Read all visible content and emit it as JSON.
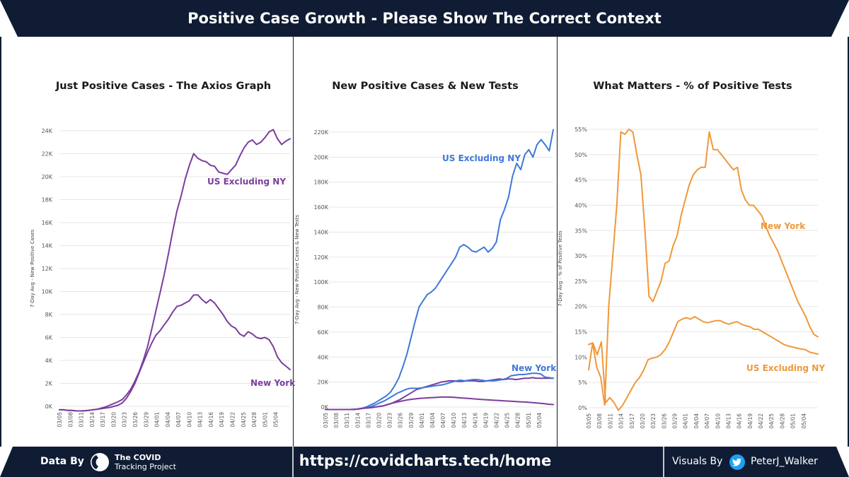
{
  "header": {
    "title": "Positive Case Growth - Please Show The Correct Context"
  },
  "colors": {
    "navy": "#0f1c33",
    "purple": "#7a3e9d",
    "blue": "#3f78d8",
    "orange": "#f0983a",
    "grid": "#e6e6e6",
    "twitter": "#1da1f2"
  },
  "footer": {
    "data_by_label": "Data By",
    "source_line1": "The COVID",
    "source_line2": "Tracking Project",
    "url": "https://covidcharts.tech/home",
    "visuals_by_label": "Visuals By",
    "author": "PeterJ_Walker",
    "twitter_icon": "twitter-bird-icon",
    "source_icon": "covid-tracking-project-logo-icon"
  },
  "chart_data": [
    {
      "type": "line",
      "title": "Just Positive Cases - The Axios Graph",
      "ylabel": "7-Day Avg - New Positive Cases",
      "ylim": [
        0,
        24000
      ],
      "yticks": [
        0,
        2000,
        4000,
        6000,
        8000,
        10000,
        12000,
        14000,
        16000,
        18000,
        20000,
        22000,
        24000
      ],
      "ytick_labels": [
        "0K",
        "2K",
        "4K",
        "6K",
        "8K",
        "10K",
        "12K",
        "14K",
        "16K",
        "18K",
        "20K",
        "22K",
        "24K"
      ],
      "x_tick_labels": [
        "03/05",
        "03/08",
        "03/11",
        "03/14",
        "03/17",
        "03/20",
        "03/23",
        "03/26",
        "03/29",
        "04/01",
        "04/04",
        "04/07",
        "04/10",
        "04/13",
        "04/16",
        "04/19",
        "04/22",
        "04/25",
        "04/28",
        "05/01",
        "05/04"
      ],
      "x_range_days": [
        0,
        64
      ],
      "grid": true,
      "series": [
        {
          "name": "US Excluding NY",
          "color": "#7a3e9d",
          "values": [
            -300,
            -300,
            -350,
            -350,
            -400,
            -400,
            -380,
            -350,
            -300,
            -250,
            -150,
            -50,
            100,
            250,
            400,
            600,
            1000,
            1500,
            2200,
            3000,
            4000,
            5200,
            6700,
            8300,
            9900,
            11500,
            13300,
            15200,
            17000,
            18300,
            19800,
            21000,
            22000,
            21600,
            21400,
            21300,
            21000,
            20900,
            20400,
            20300,
            20200,
            20600,
            21000,
            21800,
            22500,
            23000,
            23200,
            22800,
            23000,
            23400,
            23900,
            24100,
            23300,
            22800,
            23100,
            23300
          ]
        },
        {
          "name": "New York",
          "color": "#7a3e9d",
          "values": [
            -300,
            -300,
            -350,
            -350,
            -400,
            -400,
            -380,
            -350,
            -300,
            -250,
            -200,
            -150,
            -100,
            0,
            100,
            300,
            700,
            1300,
            2000,
            2900,
            3800,
            4700,
            5500,
            6200,
            6600,
            7100,
            7600,
            8200,
            8700,
            8800,
            9000,
            9200,
            9700,
            9700,
            9300,
            9000,
            9300,
            9000,
            8500,
            8000,
            7400,
            7000,
            6800,
            6300,
            6100,
            6500,
            6300,
            6000,
            5900,
            6000,
            5800,
            5200,
            4300,
            3800,
            3500,
            3200
          ]
        }
      ]
    },
    {
      "type": "line",
      "title": "New Positive Cases & New Tests",
      "ylabel": "7-Day Avg - New Positive Cases & New Tests",
      "ylim": [
        0,
        220000
      ],
      "yticks": [
        0,
        20000,
        40000,
        60000,
        80000,
        100000,
        120000,
        140000,
        160000,
        180000,
        200000,
        220000
      ],
      "ytick_labels": [
        "0K",
        "20K",
        "40K",
        "60K",
        "80K",
        "100K",
        "120K",
        "140K",
        "160K",
        "180K",
        "200K",
        "220K"
      ],
      "x_tick_labels": [
        "03/05",
        "03/08",
        "03/11",
        "03/14",
        "03/17",
        "03/20",
        "03/23",
        "03/26",
        "03/29",
        "04/01",
        "04/04",
        "04/07",
        "04/10",
        "04/13",
        "04/16",
        "04/19",
        "04/22",
        "04/25",
        "04/28",
        "05/01",
        "05/04"
      ],
      "x_range_days": [
        0,
        64
      ],
      "grid": true,
      "series": [
        {
          "name": "US Excluding NY",
          "color": "#3f78d8",
          "label_text": "US Excluding NY",
          "values": [
            -2000,
            -2000,
            -2000,
            -2000,
            -2000,
            -2000,
            -2000,
            -1800,
            -1500,
            -1000,
            0,
            1500,
            3000,
            5000,
            7000,
            9000,
            12000,
            17000,
            23000,
            32000,
            42000,
            55000,
            68000,
            80000,
            85000,
            90000,
            92000,
            95000,
            100000,
            105000,
            110000,
            115000,
            120000,
            128000,
            130000,
            128000,
            125000,
            124000,
            126000,
            128000,
            124000,
            127000,
            132000,
            150000,
            158000,
            168000,
            185000,
            195000,
            190000,
            202000,
            206000,
            200000,
            210000,
            214000,
            210000,
            205000,
            222000
          ]
        },
        {
          "name": "US Excl NY positives",
          "color": "#7a3e9d",
          "values": [
            -2000,
            -2000,
            -2000,
            -2000,
            -2000,
            -2000,
            -2000,
            -1800,
            -1500,
            -1000,
            -800,
            -500,
            0,
            500,
            1000,
            2000,
            3000,
            4500,
            6000,
            8000,
            10000,
            12000,
            14000,
            15000,
            16000,
            17000,
            18000,
            19000,
            20000,
            20500,
            21000,
            21000,
            20500,
            20500,
            21000,
            21000,
            21000,
            20500,
            20500,
            21000,
            21500,
            22000,
            22500,
            22000,
            22500,
            22500,
            22000,
            22500,
            23000,
            23000,
            23500,
            23000,
            23000,
            23000,
            23000,
            23000
          ]
        },
        {
          "name": "New York",
          "color": "#3f78d8",
          "label_text": "New York",
          "values": [
            -2000,
            -2000,
            -2000,
            -2000,
            -2000,
            -2000,
            -2000,
            -1800,
            -1500,
            -1000,
            -500,
            500,
            2000,
            3500,
            5000,
            7000,
            9000,
            11000,
            12500,
            14000,
            15000,
            15000,
            15000,
            15500,
            16000,
            16500,
            17000,
            17500,
            18000,
            19000,
            20000,
            21000,
            21500,
            21000,
            21500,
            22000,
            22000,
            21500,
            21000,
            21000,
            21000,
            21500,
            22000,
            23000,
            25000,
            25500,
            26000,
            26000,
            26500,
            27000,
            27000,
            26500,
            24000,
            23500,
            23000
          ]
        },
        {
          "name": "New York positives",
          "color": "#7a3e9d",
          "values": [
            -2000,
            -2000,
            -2000,
            -2000,
            -2000,
            -2000,
            -2000,
            -1800,
            -1500,
            -1000,
            -800,
            -500,
            0,
            500,
            1000,
            2000,
            3000,
            3800,
            4500,
            5200,
            5800,
            6300,
            6700,
            7000,
            7200,
            7400,
            7600,
            7800,
            8000,
            8000,
            8000,
            7800,
            7500,
            7200,
            7000,
            6800,
            6500,
            6200,
            6000,
            5800,
            5600,
            5400,
            5200,
            5000,
            4800,
            4600,
            4400,
            4200,
            4000,
            3800,
            3500,
            3200,
            3000,
            2600,
            2200,
            2000
          ]
        }
      ]
    },
    {
      "type": "line",
      "title": "What Matters - % of Positive Tests",
      "ylabel": "7-Day Avg - % of Positive Tests",
      "ylim": [
        0,
        55
      ],
      "yticks": [
        0,
        5,
        10,
        15,
        20,
        25,
        30,
        35,
        40,
        45,
        50,
        55
      ],
      "ytick_labels": [
        "0%",
        "5%",
        "10%",
        "15%",
        "20%",
        "25%",
        "30%",
        "35%",
        "40%",
        "45%",
        "50%",
        "55%"
      ],
      "x_tick_labels": [
        "03/05",
        "03/08",
        "03/11",
        "03/14",
        "03/17",
        "03/20",
        "03/23",
        "03/26",
        "03/29",
        "04/01",
        "04/04",
        "04/07",
        "04/10",
        "04/13",
        "04/16",
        "04/19",
        "04/22",
        "04/25",
        "04/28",
        "05/01",
        "05/04"
      ],
      "x_range_days": [
        0,
        64
      ],
      "grid": true,
      "series": [
        {
          "name": "New York",
          "color": "#f0983a",
          "label_text": "New York",
          "values": [
            7.5,
            12.8,
            8,
            6,
            0.5,
            20,
            30,
            40,
            54.5,
            54,
            55,
            54.5,
            50,
            46,
            35,
            22,
            21,
            23,
            25,
            28.5,
            29,
            32,
            34,
            38,
            41,
            44,
            46,
            47,
            47.5,
            47.5,
            54.5,
            51,
            51,
            50,
            49,
            48,
            47,
            47.5,
            43,
            41,
            40,
            40,
            39,
            38,
            36,
            34,
            32.5,
            31,
            29,
            27,
            25,
            23,
            21,
            19.5,
            18,
            16,
            14.5,
            14
          ]
        },
        {
          "name": "US Excluding NY",
          "color": "#f0983a",
          "label_text": "US Excluding NY",
          "values": [
            12.5,
            12.8,
            10.5,
            13,
            1,
            2,
            1,
            -0.5,
            0.5,
            2,
            3.5,
            5,
            6,
            7.5,
            9.5,
            9.8,
            10,
            10.5,
            11.5,
            13,
            15,
            17,
            17.5,
            17.8,
            17.5,
            18,
            17.5,
            17,
            16.8,
            17,
            17.2,
            17.2,
            16.8,
            16.5,
            16.8,
            17,
            16.5,
            16.2,
            16,
            15.5,
            15.5,
            15,
            14.5,
            14,
            13.5,
            13,
            12.5,
            12.2,
            12,
            11.8,
            11.6,
            11.5,
            11,
            10.8,
            10.6
          ]
        }
      ]
    }
  ]
}
